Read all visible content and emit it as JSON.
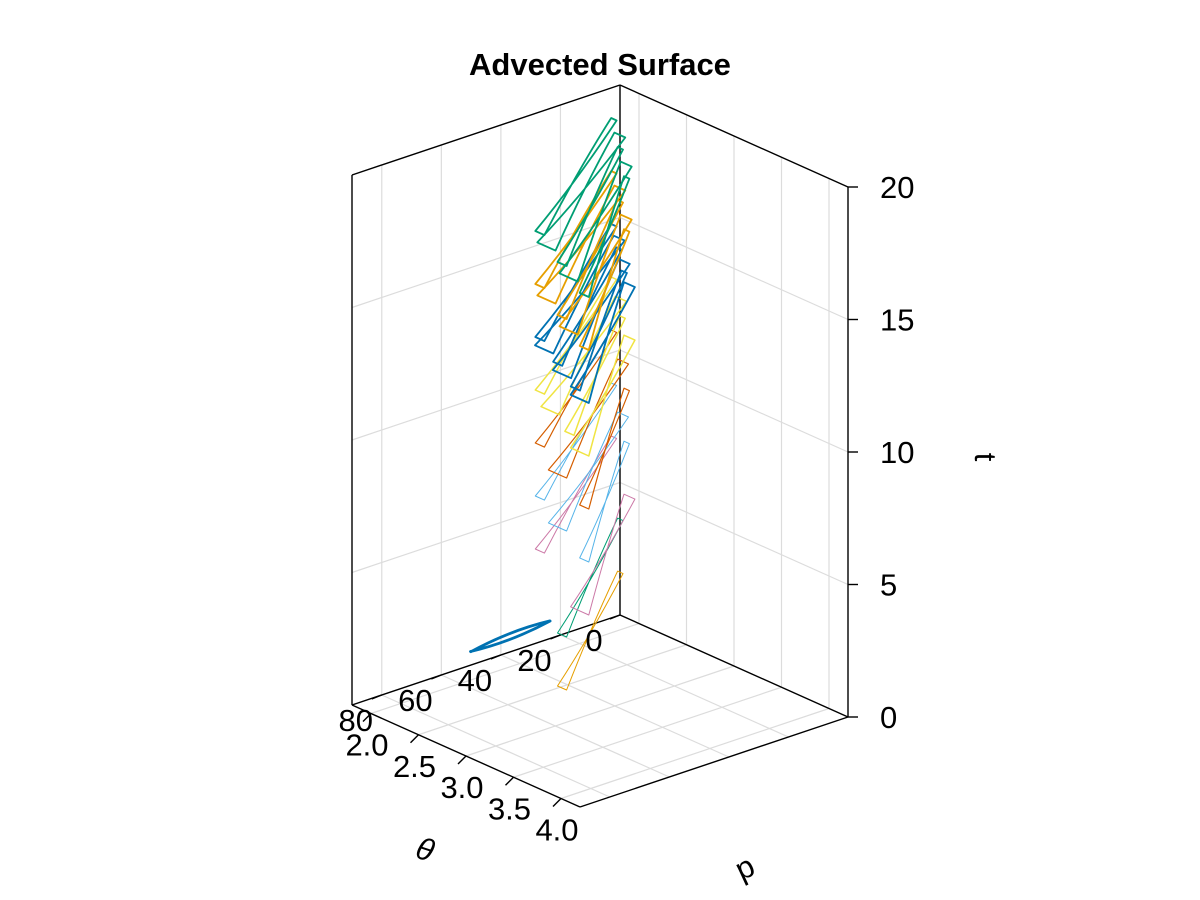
{
  "chart_data": {
    "type": "line3d",
    "title": "Advected Surface",
    "axes": {
      "x": {
        "label": "θ",
        "range": [
          0,
          90
        ],
        "ticks": [
          0,
          20,
          40,
          60,
          80
        ],
        "tick_labels": [
          "0",
          "20",
          "40",
          "60",
          "80"
        ]
      },
      "y": {
        "label": "p",
        "range": [
          1.8,
          4.2
        ],
        "ticks": [
          2.0,
          2.5,
          3.0,
          3.5,
          4.0
        ],
        "tick_labels": [
          "2.0",
          "2.5",
          "3.0",
          "3.5",
          "4.0"
        ]
      },
      "z": {
        "label": "t",
        "range": [
          0,
          20
        ],
        "ticks": [
          0,
          5,
          10,
          15,
          20
        ],
        "tick_labels": [
          "0",
          "5",
          "10",
          "15",
          "20"
        ]
      }
    },
    "grid": true,
    "legend": "none",
    "series": [
      {
        "t": 1,
        "color": "#0072B2",
        "theta_range": [
          20,
          62
        ],
        "p_range": [
          1.9,
          2.0
        ],
        "loops": 1,
        "stroke": 2.8
      },
      {
        "t": 3,
        "color": "#E69F00",
        "theta_range": [
          0,
          90
        ],
        "p_range": [
          1.8,
          4.2
        ],
        "loops": 1,
        "stroke": 1.0
      },
      {
        "t": 5,
        "color": "#009E73",
        "theta_range": [
          0,
          90
        ],
        "p_range": [
          1.8,
          4.2
        ],
        "loops": 1,
        "stroke": 1.0
      },
      {
        "t": 7,
        "color": "#CC79A7",
        "theta_range": [
          0,
          90
        ],
        "p_range": [
          1.8,
          4.2
        ],
        "loops": 2,
        "stroke": 1.0
      },
      {
        "t": 9,
        "color": "#56B4E9",
        "theta_range": [
          0,
          90
        ],
        "p_range": [
          1.8,
          4.2
        ],
        "loops": 3,
        "stroke": 1.0
      },
      {
        "t": 11,
        "color": "#D55E00",
        "theta_range": [
          0,
          90
        ],
        "p_range": [
          1.8,
          4.2
        ],
        "loops": 3,
        "stroke": 1.2
      },
      {
        "t": 13,
        "color": "#F0E442",
        "theta_range": [
          0,
          90
        ],
        "p_range": [
          1.8,
          4.2
        ],
        "loops": 4,
        "stroke": 1.5
      },
      {
        "t": 15,
        "color": "#0072B2",
        "theta_range": [
          0,
          90
        ],
        "p_range": [
          1.8,
          4.2
        ],
        "loops": 6,
        "stroke": 1.8
      },
      {
        "t": 17,
        "color": "#E69F00",
        "theta_range": [
          0,
          90
        ],
        "p_range": [
          1.8,
          4.2
        ],
        "loops": 5,
        "stroke": 1.8
      },
      {
        "t": 19,
        "color": "#009E73",
        "theta_range": [
          0,
          90
        ],
        "p_range": [
          1.8,
          4.2
        ],
        "loops": 5,
        "stroke": 1.8
      }
    ]
  }
}
